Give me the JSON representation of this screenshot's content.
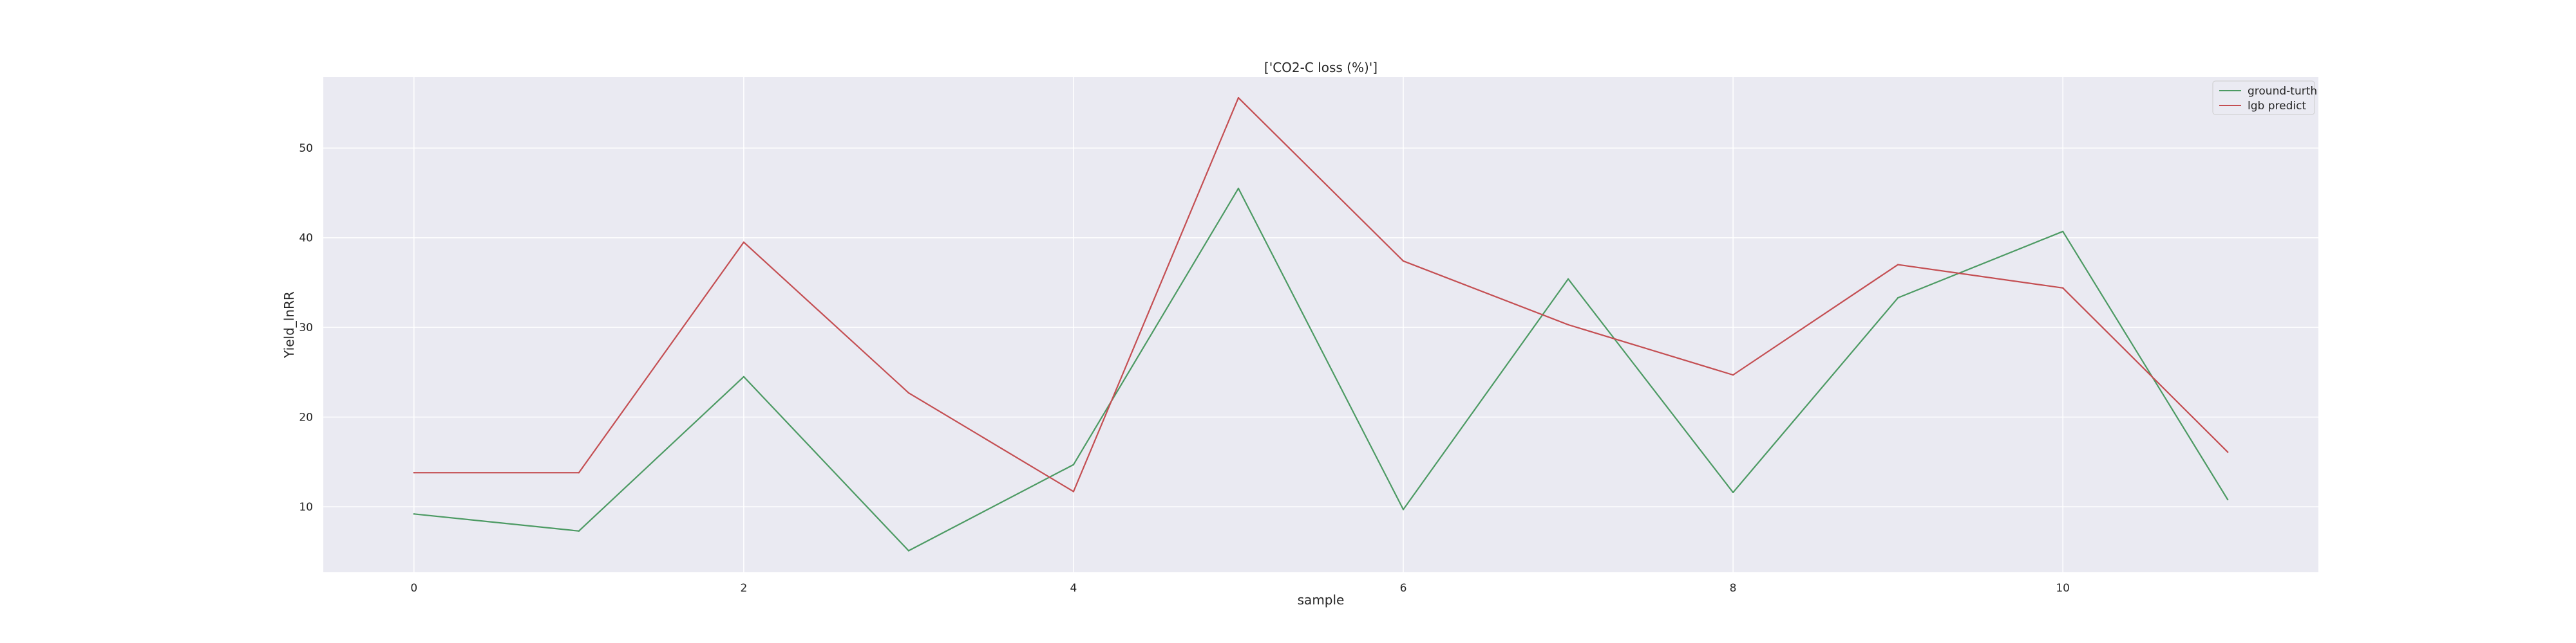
{
  "chart_data": {
    "type": "line",
    "title": "['CO2-C loss (%)']",
    "xlabel": "sample",
    "ylabel": "Yield_lnRR",
    "x": [
      0,
      1,
      2,
      3,
      4,
      5,
      6,
      7,
      8,
      9,
      10,
      11
    ],
    "xlim": [
      -0.55,
      11.55
    ],
    "ylim": [
      2.7,
      57.9
    ],
    "xticks": [
      0,
      2,
      4,
      6,
      8,
      10
    ],
    "yticks": [
      10,
      20,
      30,
      40,
      50
    ],
    "grid": true,
    "background": "#eaeaf2",
    "legend_position": "upper right",
    "series": [
      {
        "name": "ground-turth",
        "color": "#4c9a63",
        "values": [
          9.2,
          7.3,
          24.5,
          5.1,
          14.7,
          45.5,
          9.7,
          35.4,
          11.6,
          33.3,
          40.7,
          10.8
        ]
      },
      {
        "name": "lgb predict",
        "color": "#c44e52",
        "values": [
          13.8,
          13.8,
          39.5,
          22.7,
          11.7,
          55.6,
          37.4,
          30.3,
          24.7,
          37.0,
          34.4,
          16.1
        ]
      }
    ]
  }
}
